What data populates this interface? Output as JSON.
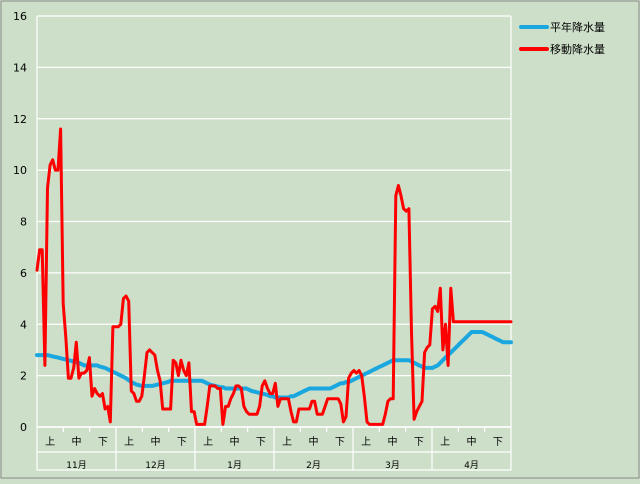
{
  "chart_data": {
    "type": "line",
    "title": "",
    "xlabel": "",
    "ylabel": "",
    "ylim": [
      0,
      16
    ],
    "yticks": [
      0,
      2,
      4,
      6,
      8,
      10,
      12,
      14,
      16
    ],
    "grid": true,
    "legend_position": "right",
    "months": [
      "11月",
      "12月",
      "1月",
      "2月",
      "3月",
      "4月"
    ],
    "subdivisions": [
      "上",
      "中",
      "下"
    ],
    "series": [
      {
        "name": "平年降水量",
        "color": "#1aa7e0",
        "x": [
          0,
          2,
          4,
          6,
          8,
          10,
          12,
          14,
          16,
          17,
          18,
          19,
          21,
          23,
          24,
          26,
          28,
          30,
          32,
          34,
          36,
          38,
          40,
          42,
          44,
          46,
          48,
          50,
          51,
          52,
          53,
          54,
          55,
          56,
          57,
          58,
          59,
          60,
          61,
          62,
          63,
          64,
          65,
          66,
          68,
          70,
          71,
          72,
          74,
          75,
          76,
          78,
          80,
          81,
          82,
          84,
          86,
          88,
          89,
          90,
          91,
          92,
          93,
          94,
          95,
          96,
          97,
          98,
          99,
          100,
          101,
          102,
          103,
          104,
          105,
          106,
          107,
          108,
          109,
          110,
          111,
          112,
          113,
          114,
          115,
          116,
          117,
          118,
          119,
          120,
          121,
          122,
          123,
          124,
          125,
          126,
          127,
          128,
          129,
          130,
          131,
          132,
          133,
          134,
          135,
          136,
          137,
          138,
          139,
          140,
          141,
          142,
          143,
          144,
          145,
          146,
          147,
          148,
          149,
          150,
          151,
          152,
          153,
          154,
          155,
          156,
          157,
          158,
          159,
          160,
          161,
          162,
          163,
          164,
          165,
          166,
          167,
          168,
          169,
          170,
          171,
          172,
          173,
          174,
          175,
          176,
          177,
          178,
          179,
          180,
          181
        ],
        "y": [
          2.8,
          2.8,
          2.8,
          2.75,
          2.7,
          2.65,
          2.6,
          2.55,
          2.5,
          2.45,
          2.4,
          2.4,
          2.4,
          2.4,
          2.35,
          2.3,
          2.2,
          2.1,
          2.0,
          1.9,
          1.75,
          1.65,
          1.6,
          1.6,
          1.6,
          1.65,
          1.7,
          1.75,
          1.8,
          1.8,
          1.8,
          1.8,
          1.8,
          1.8,
          1.8,
          1.8,
          1.8,
          1.8,
          1.8,
          1.8,
          1.8,
          1.75,
          1.7,
          1.65,
          1.6,
          1.55,
          1.55,
          1.5,
          1.5,
          1.5,
          1.5,
          1.5,
          1.5,
          1.45,
          1.4,
          1.35,
          1.3,
          1.25,
          1.2,
          1.2,
          1.15,
          1.15,
          1.15,
          1.15,
          1.15,
          1.15,
          1.2,
          1.2,
          1.25,
          1.3,
          1.35,
          1.4,
          1.45,
          1.5,
          1.5,
          1.5,
          1.5,
          1.5,
          1.5,
          1.5,
          1.5,
          1.5,
          1.55,
          1.6,
          1.65,
          1.7,
          1.7,
          1.75,
          1.75,
          1.8,
          1.85,
          1.9,
          1.95,
          2.0,
          2.05,
          2.1,
          2.15,
          2.2,
          2.25,
          2.3,
          2.35,
          2.4,
          2.45,
          2.5,
          2.55,
          2.6,
          2.6,
          2.6,
          2.6,
          2.6,
          2.6,
          2.6,
          2.55,
          2.5,
          2.45,
          2.4,
          2.35,
          2.3,
          2.3,
          2.3,
          2.3,
          2.35,
          2.4,
          2.5,
          2.6,
          2.7,
          2.8,
          2.9,
          3.0,
          3.1,
          3.2,
          3.3,
          3.4,
          3.5,
          3.6,
          3.7,
          3.7,
          3.7,
          3.7,
          3.7,
          3.65,
          3.6,
          3.55,
          3.5,
          3.45,
          3.4,
          3.35,
          3.3,
          3.3,
          3.3,
          3.3
        ]
      },
      {
        "name": "移動降水量",
        "color": "#ff0000",
        "x": [
          0,
          1,
          2,
          3,
          4,
          5,
          6,
          7,
          8,
          9,
          10,
          11,
          12,
          13,
          14,
          15,
          16,
          17,
          18,
          19,
          20,
          21,
          22,
          23,
          24,
          25,
          26,
          27,
          28,
          29,
          30,
          31,
          32,
          33,
          34,
          35,
          36,
          37,
          38,
          39,
          40,
          41,
          42,
          43,
          44,
          45,
          46,
          47,
          48,
          49,
          50,
          51,
          52,
          53,
          54,
          55,
          56,
          57,
          58,
          59,
          60,
          61,
          62,
          63,
          64,
          65,
          66,
          67,
          68,
          69,
          70,
          71,
          72,
          73,
          74,
          75,
          76,
          77,
          78,
          79,
          80,
          81,
          82,
          83,
          84,
          85,
          86,
          87,
          88,
          89,
          90,
          91,
          92,
          93,
          94,
          95,
          96,
          97,
          98,
          99,
          100,
          101,
          102,
          103,
          104,
          105,
          106,
          107,
          108,
          109,
          110,
          111,
          112,
          113,
          114,
          115,
          116,
          117,
          118,
          119,
          120,
          121,
          122,
          123,
          124,
          125,
          126,
          127,
          128,
          129,
          130,
          131,
          132,
          133,
          134,
          135,
          136,
          137,
          138,
          139,
          140,
          141,
          142,
          143,
          144,
          145,
          146,
          147,
          148,
          149,
          150,
          151,
          152,
          153,
          154,
          155,
          156,
          157,
          158,
          159,
          160,
          161,
          162,
          163,
          164,
          165,
          166,
          167,
          168,
          169,
          170,
          171,
          172,
          173,
          174,
          175,
          176,
          177,
          178,
          179,
          180,
          181
        ],
        "y": [
          6.1,
          6.9,
          6.9,
          2.4,
          9.3,
          10.2,
          10.4,
          10.0,
          10.0,
          11.6,
          4.8,
          3.5,
          1.9,
          1.9,
          2.3,
          3.3,
          1.9,
          2.1,
          2.1,
          2.2,
          2.7,
          1.2,
          1.5,
          1.3,
          1.2,
          1.3,
          0.7,
          0.8,
          0.2,
          3.9,
          3.9,
          3.9,
          4.0,
          5.0,
          5.1,
          4.9,
          1.4,
          1.3,
          1.0,
          1.0,
          1.2,
          2.0,
          2.9,
          3.0,
          2.9,
          2.8,
          2.2,
          1.8,
          0.7,
          0.7,
          0.7,
          0.7,
          2.6,
          2.5,
          2.0,
          2.6,
          2.2,
          2.0,
          2.5,
          0.6,
          0.6,
          0.1,
          0.1,
          0.1,
          0.1,
          0.8,
          1.6,
          1.6,
          1.6,
          1.5,
          1.5,
          0.1,
          0.8,
          0.8,
          1.1,
          1.3,
          1.6,
          1.6,
          1.5,
          0.8,
          0.6,
          0.5,
          0.5,
          0.5,
          0.5,
          0.8,
          1.6,
          1.8,
          1.5,
          1.3,
          1.3,
          1.7,
          0.8,
          1.1,
          1.1,
          1.1,
          1.1,
          0.6,
          0.2,
          0.2,
          0.7,
          0.7,
          0.7,
          0.7,
          0.7,
          1.0,
          1.0,
          0.5,
          0.5,
          0.5,
          0.8,
          1.1,
          1.1,
          1.1,
          1.1,
          1.1,
          0.9,
          0.2,
          0.4,
          1.9,
          2.1,
          2.2,
          2.1,
          2.2,
          2.0,
          1.2,
          0.2,
          0.1,
          0.1,
          0.1,
          0.1,
          0.1,
          0.1,
          0.5,
          1.0,
          1.1,
          1.1,
          9.0,
          9.4,
          9.0,
          8.5,
          8.4,
          8.5,
          3.7,
          0.3,
          0.6,
          0.8,
          1.0,
          2.9,
          3.1,
          3.2,
          4.6,
          4.7,
          4.5,
          5.4,
          3.0,
          4.0,
          2.4,
          5.4,
          4.1,
          4.1,
          4.1,
          4.1,
          4.1,
          4.1,
          4.1,
          4.1,
          4.1,
          4.1,
          4.1,
          4.1,
          4.1,
          4.1,
          4.1,
          4.1,
          4.1,
          4.1,
          4.1,
          4.1,
          4.1,
          4.1,
          4.1
        ]
      }
    ]
  }
}
